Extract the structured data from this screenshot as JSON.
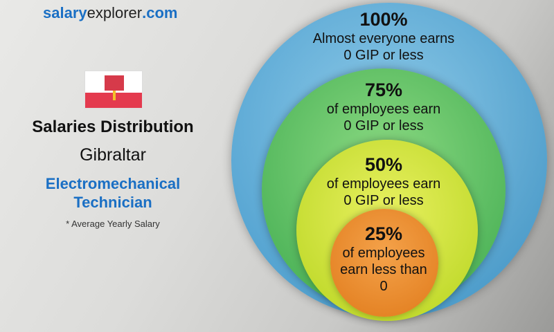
{
  "brand": {
    "part1": "salary",
    "part2": "explorer",
    "part3": ".com"
  },
  "title": "Salaries Distribution",
  "country": "Gibraltar",
  "job": {
    "line1": "Electromechanical",
    "line2": "Technician"
  },
  "note": "* Average Yearly Salary",
  "levels": [
    {
      "percent": "100%",
      "line1": "Almost everyone earns",
      "line2": "0 GIP or less",
      "color": "#3a9fd8"
    },
    {
      "percent": "75%",
      "line1": "of employees earn",
      "line2": "0 GIP or less",
      "color": "#5cbf4a"
    },
    {
      "percent": "50%",
      "line1": "of employees earn",
      "line2": "0 GIP or less",
      "color": "#c6de2c"
    },
    {
      "percent": "25%",
      "line1": "of employees",
      "line2": "earn less than",
      "line3": "0",
      "color": "#ec8c2e"
    }
  ]
}
